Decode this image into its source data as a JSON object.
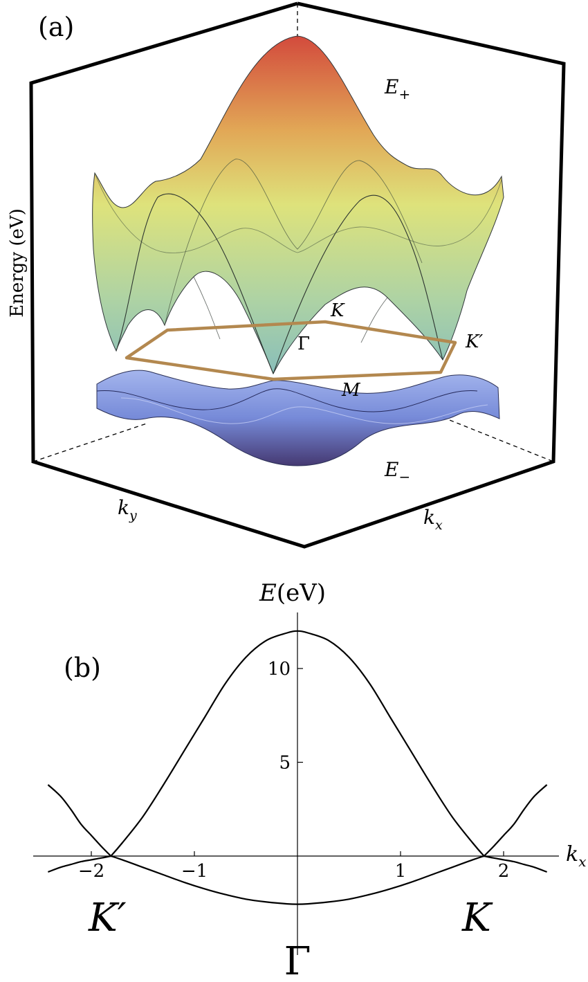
{
  "panel_a": {
    "panel_label": "(a)",
    "zlabel": "Energy (eV)",
    "xlabel": "k",
    "xlabel_sub": "x",
    "ylabel": "k",
    "ylabel_sub": "y",
    "upper_band": "E",
    "upper_band_sub": "+",
    "lower_band": "E",
    "lower_band_sub": "−",
    "point_gamma": "Γ",
    "point_k": "K",
    "point_kprime": "K′",
    "point_m": "M",
    "colors": {
      "bz_outline": "#b3884f",
      "upper_top": "#cf3b2c",
      "upper_mid": "#dbe070",
      "upper_low": "#7fb9b4",
      "lower_surface": "#6f84d6",
      "lower_bottom": "#3b2e6a"
    }
  },
  "panel_b": {
    "panel_label": "(b)",
    "ylabel": "E",
    "ylabel_unit": "(eV)",
    "xlabel": "k",
    "xlabel_sub": "x",
    "point_gamma": "Γ",
    "point_k": "K",
    "point_kprime": "K′"
  },
  "chart_data": {
    "type": "line",
    "xlabel": "k_x",
    "ylabel": "E(eV)",
    "xlim": [
      -2.42,
      2.42
    ],
    "ylim": [
      -2.9,
      12.5
    ],
    "x_ticks": [
      -2,
      -1,
      1,
      2
    ],
    "x_tick_labels": [
      "−2",
      "−1",
      "1",
      "2"
    ],
    "y_ticks": [
      5,
      10
    ],
    "y_tick_labels": [
      "5",
      "10"
    ],
    "special_points": [
      {
        "label": "K′",
        "x": -1.81
      },
      {
        "label": "Γ",
        "x": 0
      },
      {
        "label": "K",
        "x": 1.81
      }
    ],
    "series": [
      {
        "x": [
          -2.42,
          -2.3,
          -2.2,
          -2.1,
          -2.0,
          -1.9,
          -1.81,
          -1.7,
          -1.5,
          -1.3,
          -1.1,
          -0.9,
          -0.7,
          -0.5,
          -0.3,
          -0.1,
          0.0,
          0.1,
          0.3,
          0.5,
          0.7,
          0.9,
          1.1,
          1.3,
          1.5,
          1.7,
          1.81,
          1.9,
          2.0,
          2.1,
          2.2,
          2.3,
          2.42
        ],
        "y": [
          3.8,
          3.2,
          2.5,
          1.7,
          1.1,
          0.5,
          0.0,
          0.7,
          2.1,
          3.8,
          5.6,
          7.4,
          9.2,
          10.6,
          11.5,
          11.9,
          12.0,
          11.9,
          11.5,
          10.6,
          9.2,
          7.4,
          5.6,
          3.8,
          2.1,
          0.7,
          0.0,
          0.5,
          1.1,
          1.7,
          2.5,
          3.2,
          3.8
        ]
      },
      {
        "x": [
          -2.42,
          -2.3,
          -2.2,
          -2.1,
          -2.0,
          -1.9,
          -1.81,
          -1.7,
          -1.5,
          -1.3,
          -1.1,
          -0.9,
          -0.7,
          -0.5,
          -0.3,
          -0.1,
          0.0,
          0.1,
          0.3,
          0.5,
          0.7,
          0.9,
          1.1,
          1.3,
          1.5,
          1.7,
          1.81,
          1.9,
          2.0,
          2.1,
          2.2,
          2.3,
          2.42
        ],
        "y": [
          -0.85,
          -0.6,
          -0.45,
          -0.3,
          -0.2,
          -0.1,
          0.0,
          -0.2,
          -0.6,
          -1.0,
          -1.4,
          -1.75,
          -2.05,
          -2.3,
          -2.45,
          -2.55,
          -2.57,
          -2.55,
          -2.45,
          -2.3,
          -2.05,
          -1.75,
          -1.4,
          -1.0,
          -0.6,
          -0.2,
          0.0,
          -0.1,
          -0.2,
          -0.3,
          -0.45,
          -0.6,
          -0.85
        ]
      }
    ]
  }
}
